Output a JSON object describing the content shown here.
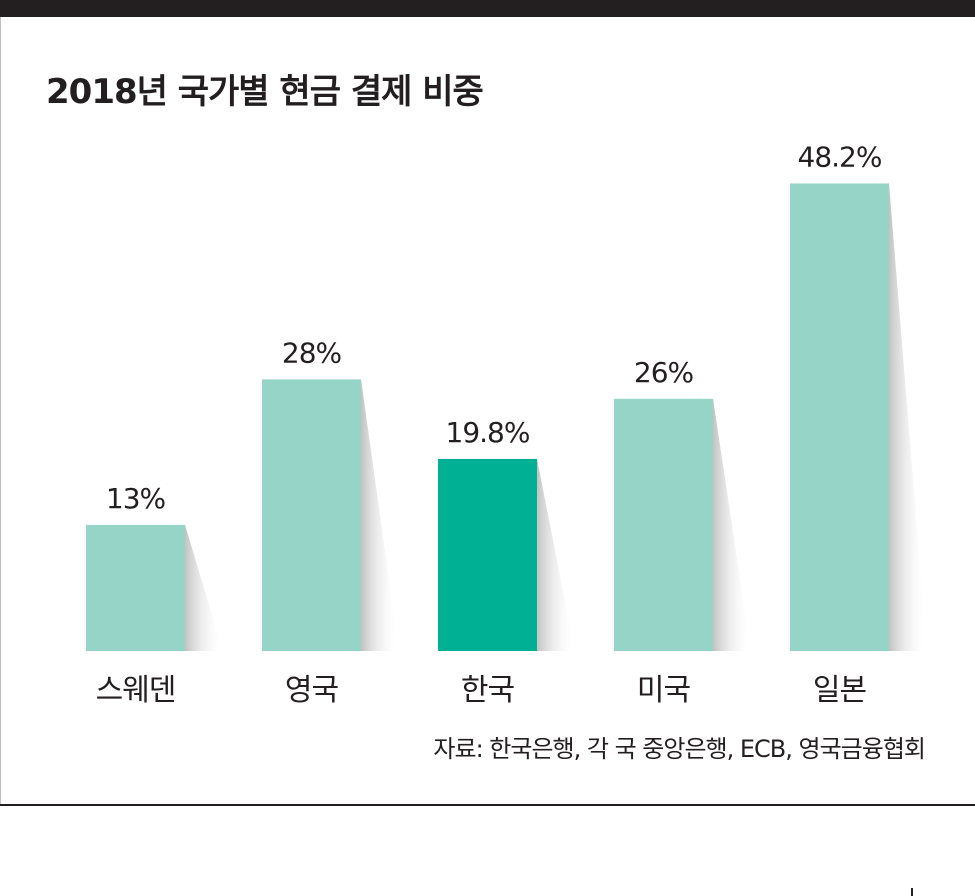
{
  "title": "2018년 국가별 현금 결제 비중",
  "source": "자료: 한국은행,  각 국 중앙은행, ECB, 영국금융협회",
  "colors": {
    "bar_default": "#96d4c7",
    "bar_highlight": "#00b095",
    "text": "#231f20",
    "rule": "#231f20"
  },
  "chart_data": {
    "type": "bar",
    "title": "2018년 국가별 현금 결제 비중",
    "xlabel": "",
    "ylabel": "",
    "categories": [
      "스웨덴",
      "영국",
      "한국",
      "미국",
      "일본"
    ],
    "values": [
      13,
      28,
      19.8,
      26,
      48.2
    ],
    "value_labels": [
      "13%",
      "28%",
      "19.8%",
      "26%",
      "48.2%"
    ],
    "highlight": "한국",
    "ylim": [
      0,
      50
    ],
    "grid": false,
    "legend": "none"
  }
}
